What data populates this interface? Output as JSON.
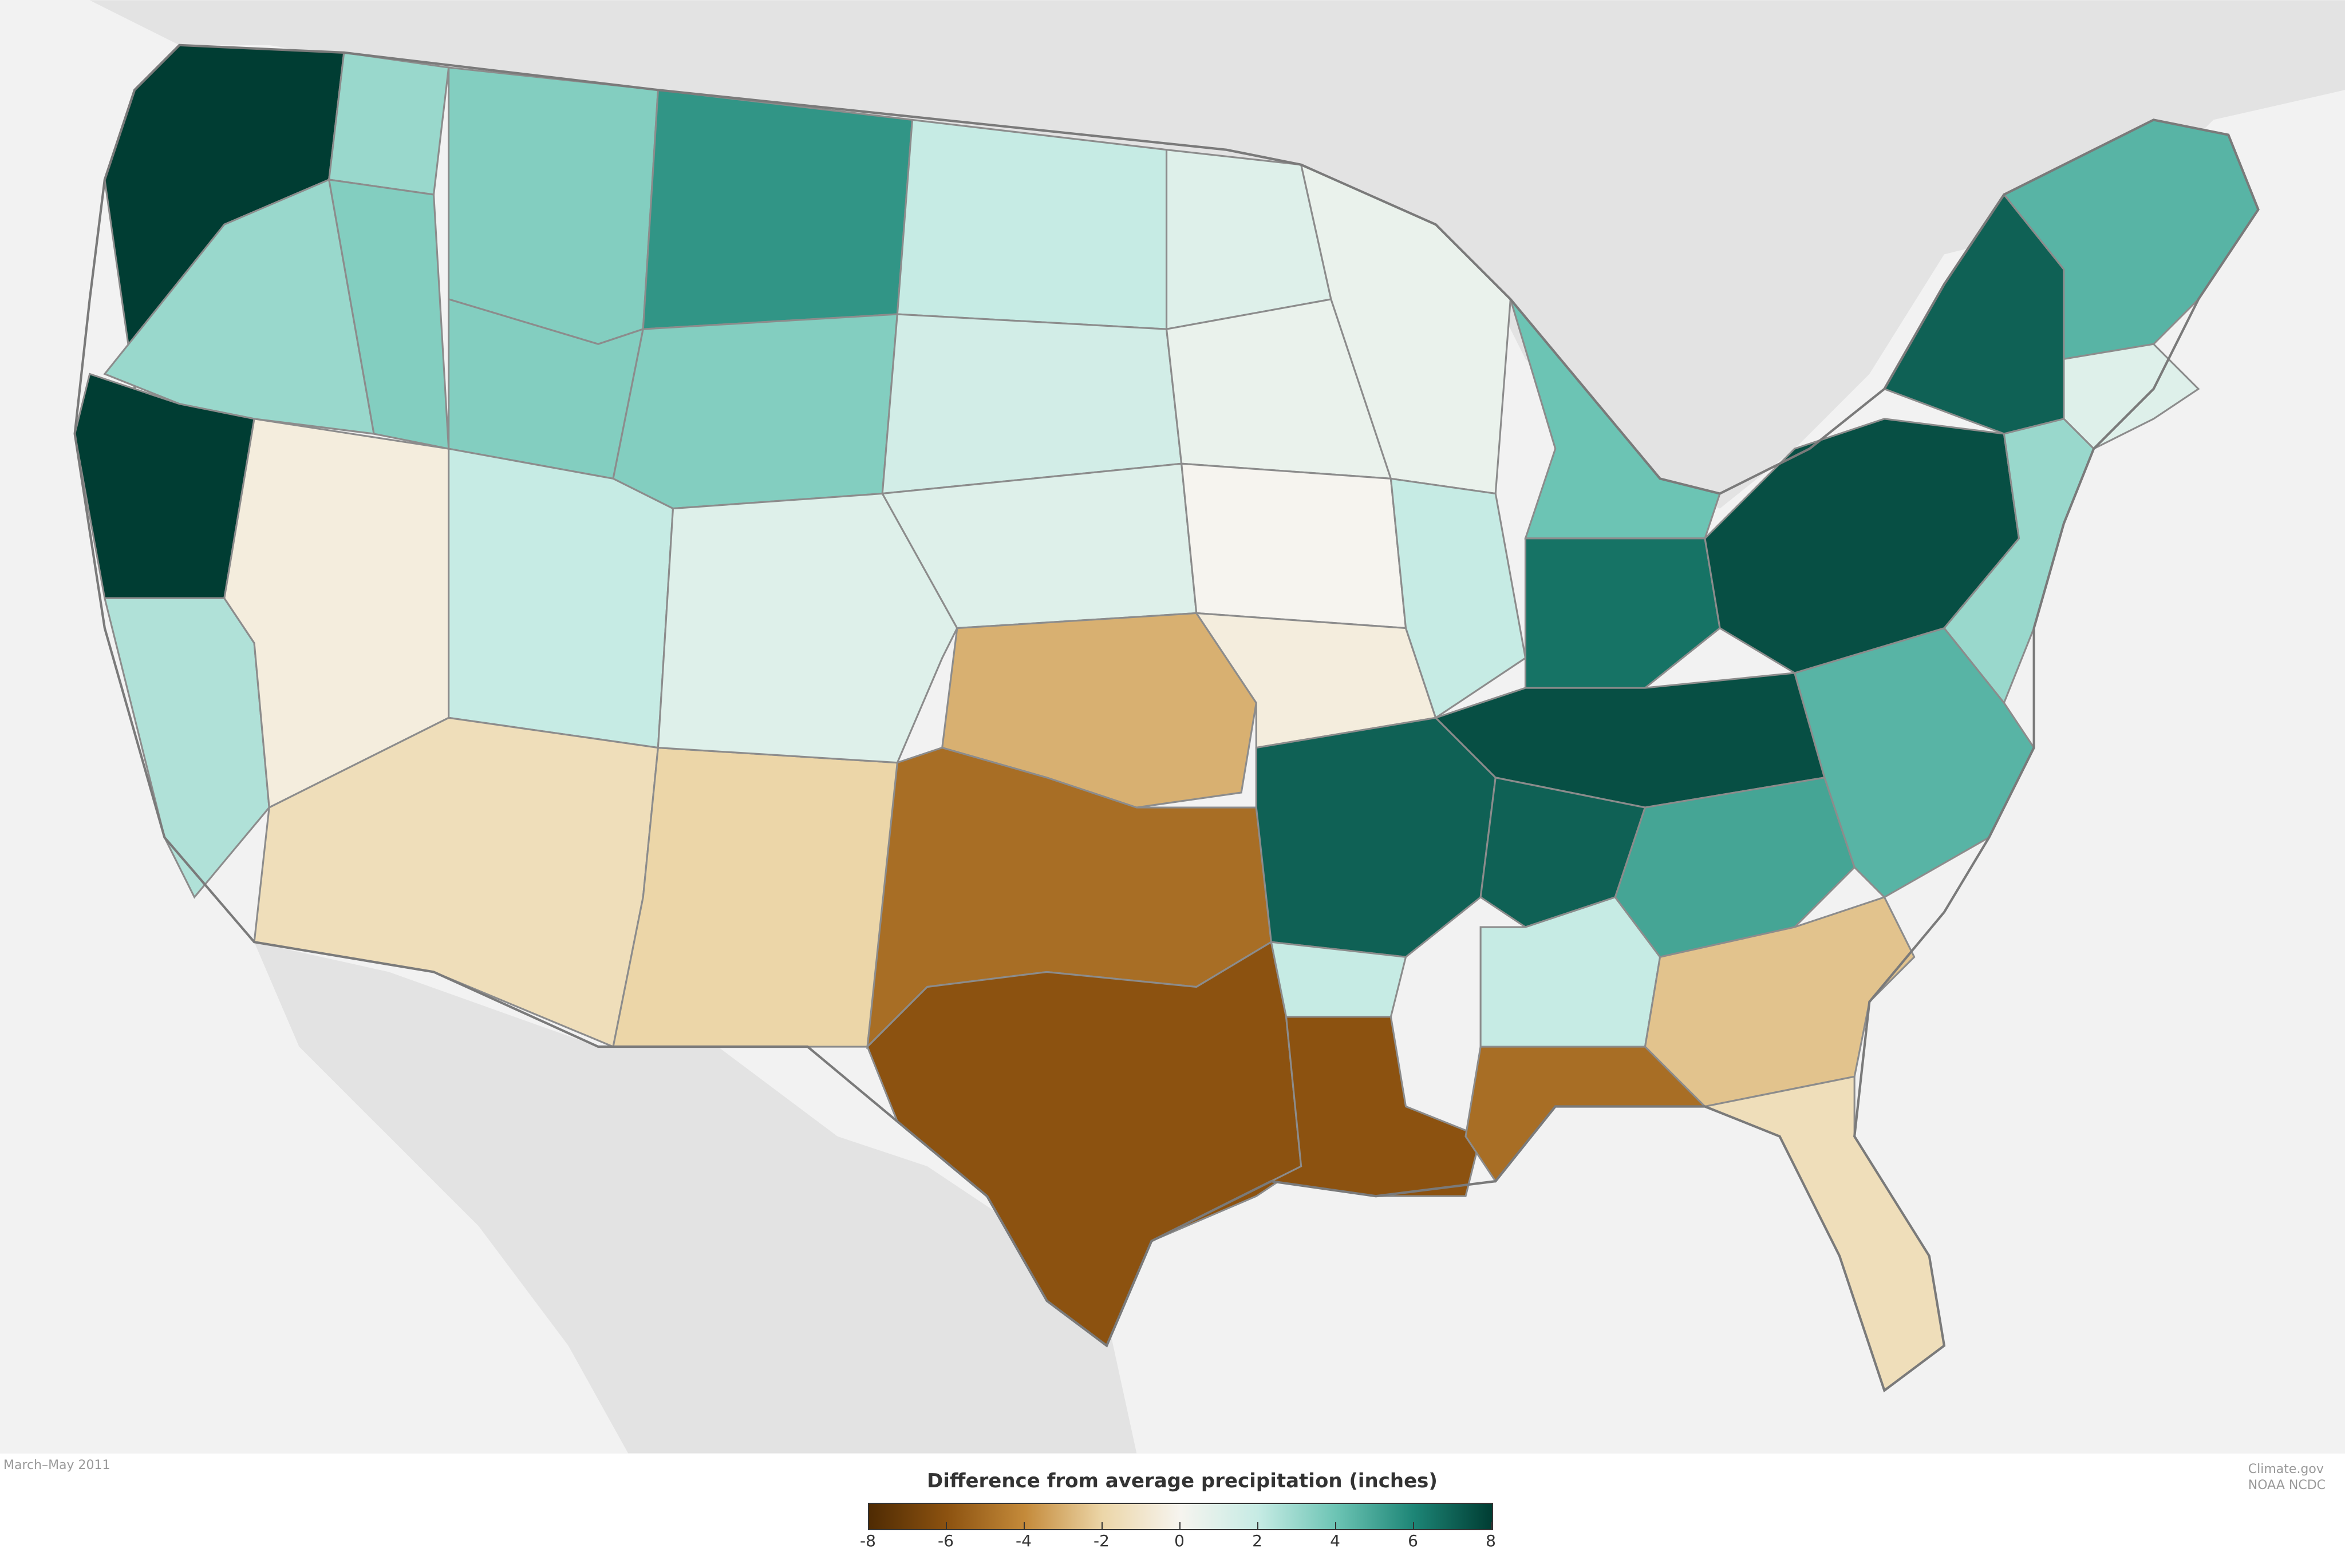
{
  "map": {
    "region": "contiguous United States",
    "period": "March–May 2011",
    "credit_lines": [
      "Climate.gov",
      "NOAA NCDC"
    ],
    "colors": {
      "ocean": "#f2f2f2",
      "neighbor_land": "#e3e3e3",
      "state_border": "#8c8c8c",
      "wet_dark": "#003d33",
      "dry_dark": "#4f2b03",
      "neutral": "#f6f4ef"
    }
  },
  "legend": {
    "title": "Difference from average precipitation (inches)",
    "ticks": [
      "-8",
      "-6",
      "-4",
      "-2",
      "0",
      "2",
      "4",
      "6",
      "8"
    ],
    "range": [
      -8,
      8
    ],
    "color_stops": [
      {
        "value": -8,
        "color": "#4f2b03"
      },
      {
        "value": -6,
        "color": "#8c5210"
      },
      {
        "value": -4,
        "color": "#c48a3a"
      },
      {
        "value": -2,
        "color": "#ecd6a8"
      },
      {
        "value": 0,
        "color": "#f6f4ef"
      },
      {
        "value": 2,
        "color": "#c6ebe4"
      },
      {
        "value": 4,
        "color": "#6cc4b4"
      },
      {
        "value": 6,
        "color": "#1d8576"
      },
      {
        "value": 8,
        "color": "#003d33"
      }
    ]
  }
}
